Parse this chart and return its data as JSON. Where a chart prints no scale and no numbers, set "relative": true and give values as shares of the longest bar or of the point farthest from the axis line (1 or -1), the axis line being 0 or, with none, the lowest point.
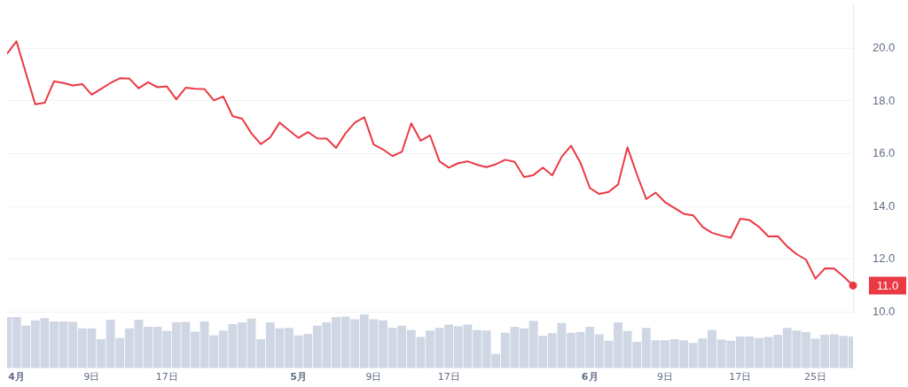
{
  "chart_data": [
    {
      "type": "line",
      "x": [
        "--03-31",
        "--04-01",
        "--04-02",
        "--04-03",
        "--04-04",
        "--04-05",
        "--04-06",
        "--04-07",
        "--04-08",
        "--04-09",
        "--04-10",
        "--04-11",
        "--04-12",
        "--04-13",
        "--04-14",
        "--04-15",
        "--04-16",
        "--04-17",
        "--04-18",
        "--04-19",
        "--04-20",
        "--04-21",
        "--04-22",
        "--04-23",
        "--04-24",
        "--04-25",
        "--04-26",
        "--04-27",
        "--04-28",
        "--04-29",
        "--04-30",
        "--05-01",
        "--05-02",
        "--05-03",
        "--05-04",
        "--05-05",
        "--05-06",
        "--05-07",
        "--05-08",
        "--05-09",
        "--05-10",
        "--05-11",
        "--05-12",
        "--05-13",
        "--05-14",
        "--05-15",
        "--05-16",
        "--05-17",
        "--05-18",
        "--05-19",
        "--05-20",
        "--05-21",
        "--05-22",
        "--05-23",
        "--05-24",
        "--05-25",
        "--05-26",
        "--05-27",
        "--05-28",
        "--05-29",
        "--05-30",
        "--05-31",
        "--06-01",
        "--06-02",
        "--06-03",
        "--06-04",
        "--06-05",
        "--06-06",
        "--06-07",
        "--06-08",
        "--06-09",
        "--06-10",
        "--06-11",
        "--06-12",
        "--06-13",
        "--06-14",
        "--06-15",
        "--06-16",
        "--06-17",
        "--06-18",
        "--06-19",
        "--06-20",
        "--06-21",
        "--06-22",
        "--06-23",
        "--06-24",
        "--06-25",
        "--06-26",
        "--06-27",
        "--06-28",
        "--06-29"
      ],
      "series": [
        {
          "color": "#ea3943",
          "values": [
            19.79,
            20.26,
            19.06,
            17.87,
            17.93,
            18.75,
            18.68,
            18.59,
            18.64,
            18.24,
            18.46,
            18.68,
            18.86,
            18.85,
            18.48,
            18.71,
            18.52,
            18.55,
            18.06,
            18.5,
            18.46,
            18.45,
            18.02,
            18.17,
            17.42,
            17.33,
            16.77,
            16.36,
            16.62,
            17.18,
            16.88,
            16.6,
            16.82,
            16.58,
            16.57,
            16.22,
            16.77,
            17.18,
            17.38,
            16.35,
            16.16,
            15.91,
            16.07,
            17.15,
            16.49,
            16.69,
            15.71,
            15.47,
            15.64,
            15.71,
            15.58,
            15.49,
            15.6,
            15.77,
            15.69,
            15.11,
            15.19,
            15.47,
            15.18,
            15.88,
            16.3,
            15.66,
            14.7,
            14.47,
            14.55,
            14.83,
            16.24,
            15.22,
            14.28,
            14.52,
            14.16,
            13.94,
            13.72,
            13.66,
            13.22,
            13.0,
            12.89,
            12.81,
            13.53,
            13.48,
            13.22,
            12.86,
            12.87,
            12.48,
            12.19,
            11.98,
            11.26,
            11.65,
            11.64,
            11.34,
            11.0
          ]
        }
      ],
      "xlim": [
        "--03-31",
        "--06-29"
      ],
      "ylim": [
        10,
        21.7
      ],
      "yticks": [
        {
          "value": 10,
          "label": "10.0"
        },
        {
          "value": 12,
          "label": "12.0"
        },
        {
          "value": 14,
          "label": "14.0"
        },
        {
          "value": 16,
          "label": "16.0"
        },
        {
          "value": 18,
          "label": "18.0"
        },
        {
          "value": 20,
          "label": "20.0"
        }
      ],
      "annotations": [
        {
          "text": "11.0",
          "x": "--06-29",
          "y": 11.0
        }
      ],
      "grid": "y",
      "legend": false,
      "tick_labels": "y"
    },
    {
      "type": "bar",
      "relative": true,
      "x": [
        "--03-31",
        "--04-01",
        "--04-02",
        "--04-03",
        "--04-04",
        "--04-05",
        "--04-06",
        "--04-07",
        "--04-08",
        "--04-09",
        "--04-10",
        "--04-11",
        "--04-12",
        "--04-13",
        "--04-14",
        "--04-15",
        "--04-16",
        "--04-17",
        "--04-18",
        "--04-19",
        "--04-20",
        "--04-21",
        "--04-22",
        "--04-23",
        "--04-24",
        "--04-25",
        "--04-26",
        "--04-27",
        "--04-28",
        "--04-29",
        "--04-30",
        "--05-01",
        "--05-02",
        "--05-03",
        "--05-04",
        "--05-05",
        "--05-06",
        "--05-07",
        "--05-08",
        "--05-09",
        "--05-10",
        "--05-11",
        "--05-12",
        "--05-13",
        "--05-14",
        "--05-15",
        "--05-16",
        "--05-17",
        "--05-18",
        "--05-19",
        "--05-20",
        "--05-21",
        "--05-22",
        "--05-23",
        "--05-24",
        "--05-25",
        "--05-26",
        "--05-27",
        "--05-28",
        "--05-29",
        "--05-30",
        "--05-31",
        "--06-01",
        "--06-02",
        "--06-03",
        "--06-04",
        "--06-05",
        "--06-06",
        "--06-07",
        "--06-08",
        "--06-09",
        "--06-10",
        "--06-11",
        "--06-12",
        "--06-13",
        "--06-14",
        "--06-15",
        "--06-16",
        "--06-17",
        "--06-18",
        "--06-19",
        "--06-20",
        "--06-21",
        "--06-22",
        "--06-23",
        "--06-24",
        "--06-25",
        "--06-26",
        "--06-27",
        "--06-28",
        "--06-29"
      ],
      "series": [
        {
          "color": "#cfd6e4",
          "values": [
            0.95,
            0.95,
            0.79,
            0.89,
            0.93,
            0.87,
            0.87,
            0.86,
            0.74,
            0.74,
            0.54,
            0.9,
            0.56,
            0.74,
            0.9,
            0.77,
            0.77,
            0.69,
            0.85,
            0.86,
            0.68,
            0.87,
            0.61,
            0.7,
            0.82,
            0.85,
            0.92,
            0.54,
            0.85,
            0.74,
            0.75,
            0.61,
            0.64,
            0.79,
            0.85,
            0.95,
            0.96,
            0.91,
            1,
            0.91,
            0.89,
            0.75,
            0.79,
            0.71,
            0.58,
            0.7,
            0.75,
            0.81,
            0.78,
            0.81,
            0.71,
            0.7,
            0.27,
            0.66,
            0.77,
            0.74,
            0.88,
            0.6,
            0.65,
            0.84,
            0.66,
            0.67,
            0.77,
            0.63,
            0.51,
            0.85,
            0.69,
            0.49,
            0.75,
            0.52,
            0.52,
            0.54,
            0.52,
            0.47,
            0.55,
            0.71,
            0.53,
            0.51,
            0.59,
            0.59,
            0.56,
            0.58,
            0.62,
            0.75,
            0.7,
            0.67,
            0.55,
            0.62,
            0.63,
            0.6,
            0.59
          ]
        }
      ],
      "xlim": [
        "--03-31",
        "--06-29"
      ],
      "xticks": [
        {
          "value": "--04-01",
          "label": "4月"
        },
        {
          "value": "--04-09",
          "label": "9日"
        },
        {
          "value": "--04-17",
          "label": "17日"
        },
        {
          "value": "--05-01",
          "label": "5月"
        },
        {
          "value": "--05-09",
          "label": "9日"
        },
        {
          "value": "--05-17",
          "label": "17日"
        },
        {
          "value": "--06-01",
          "label": "6月"
        },
        {
          "value": "--06-09",
          "label": "9日"
        },
        {
          "value": "--06-17",
          "label": "17日"
        },
        {
          "value": "--06-25",
          "label": "25日"
        }
      ],
      "legend": false,
      "tick_labels": "x"
    }
  ]
}
